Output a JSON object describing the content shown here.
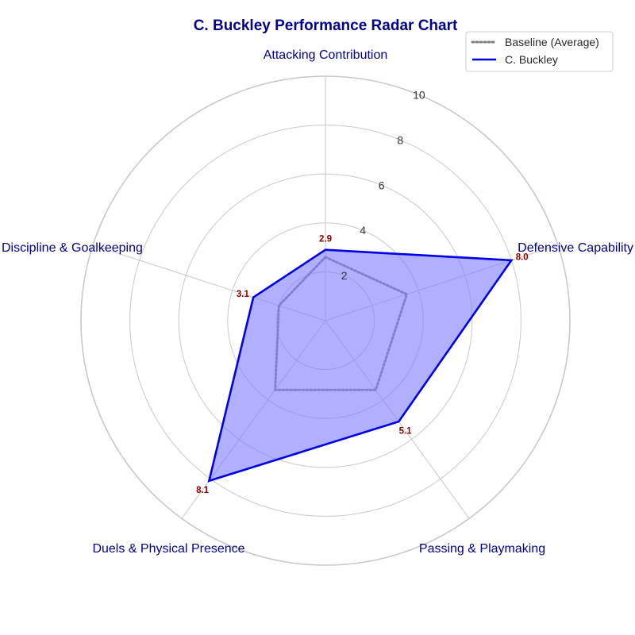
{
  "chart_data": {
    "type": "radar",
    "title": "C. Buckley Performance Radar Chart",
    "categories": [
      "Attacking Contribution",
      "Defensive Capability",
      "Passing & Playmaking",
      "Duels & Physical Presence",
      "Discipline & Goalkeeping"
    ],
    "rlim": [
      0,
      10
    ],
    "ticks": [
      2,
      4,
      6,
      8,
      10
    ],
    "tick_labels": [
      "2",
      "4",
      "6",
      "8",
      "10"
    ],
    "grid": true,
    "legend_position": "top-right",
    "series": [
      {
        "name": "Baseline (Average)",
        "values": [
          2.6,
          3.5,
          3.5,
          3.5,
          2.0
        ],
        "style": "dotted",
        "color": "#808080",
        "filled": false
      },
      {
        "name": "C. Buckley",
        "values": [
          2.9,
          8.0,
          5.1,
          8.1,
          3.1
        ],
        "data_labels": [
          "2.9",
          "8.0",
          "5.1",
          "8.1",
          "3.1"
        ],
        "style": "solid",
        "color": "#0000e6",
        "fill_color": "#8080ff",
        "filled": true
      }
    ]
  }
}
